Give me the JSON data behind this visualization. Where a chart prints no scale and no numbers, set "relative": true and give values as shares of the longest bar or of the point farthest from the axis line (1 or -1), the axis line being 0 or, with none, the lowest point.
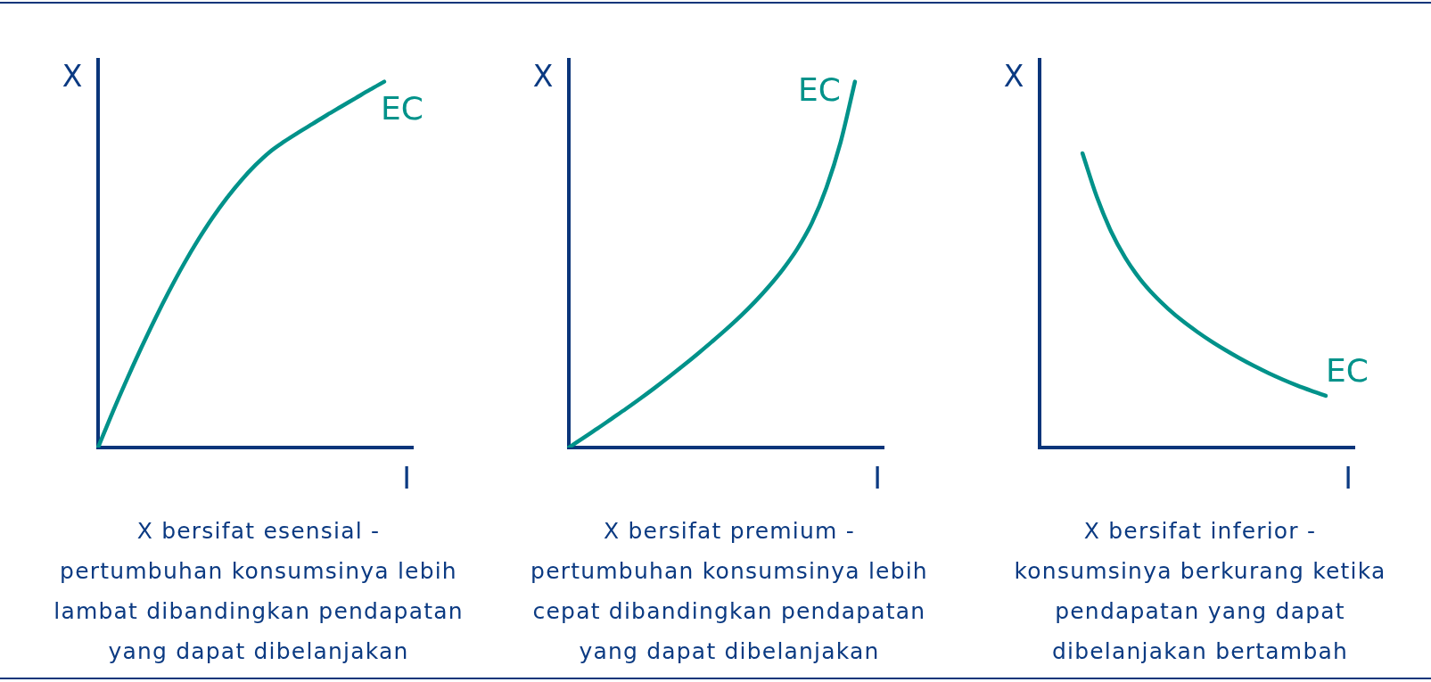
{
  "chart_data": [
    {
      "type": "line",
      "relative": true,
      "xlabel": "I",
      "ylabel": "X",
      "categories": [
        null,
        null,
        null,
        null,
        null,
        null,
        null,
        null,
        null,
        null,
        null,
        null,
        null,
        null,
        null,
        null,
        null,
        null,
        null,
        null,
        null,
        null,
        null
      ],
      "series": [
        {
          "name": "EC",
          "color": "#00928a",
          "values": [
            0,
            0.095,
            0.185,
            0.271,
            0.353,
            0.43,
            0.502,
            0.568,
            0.628,
            0.682,
            0.73,
            0.772,
            0.808,
            0.836,
            0.861,
            0.885,
            0.909,
            0.932,
            0.955,
            0.978,
            1,
            null,
            null
          ]
        }
      ],
      "annotations": [
        "X bersifat esensial -\npertumbuhan konsumsinya lebih lambat dibandingkan pendapatan yang dapat dibelanjakan"
      ]
    },
    {
      "type": "line",
      "relative": true,
      "xlabel": "I",
      "ylabel": "X",
      "categories": [
        null,
        null,
        null,
        null,
        null,
        null,
        null,
        null,
        null,
        null,
        null,
        null,
        null,
        null,
        null,
        null,
        null,
        null,
        null,
        null,
        null,
        null,
        null
      ],
      "series": [
        {
          "name": "EC",
          "color": "#00928a",
          "values": [
            0,
            0.026,
            0.052,
            0.079,
            0.106,
            0.134,
            0.163,
            0.193,
            0.224,
            0.256,
            0.289,
            0.323,
            0.359,
            0.398,
            0.441,
            0.489,
            0.545,
            0.615,
            0.71,
            0.835,
            1,
            null,
            null
          ]
        }
      ],
      "annotations": [
        "X bersifat premium -\npertumbuhan konsumsinya lebih cepat dibandingkan pendapatan yang dapat dibelanjakan"
      ]
    },
    {
      "type": "line",
      "relative": true,
      "xlabel": "I",
      "ylabel": "X",
      "categories": [
        null,
        null,
        null,
        null,
        null,
        null,
        null,
        null,
        null,
        null,
        null,
        null,
        null,
        null,
        null,
        null,
        null,
        null,
        null,
        null,
        null,
        null,
        null
      ],
      "series": [
        {
          "name": "EC",
          "color": "#00928a",
          "values": [
            null,
            null,
            null,
            1,
            0.852,
            0.734,
            0.644,
            0.574,
            0.518,
            0.471,
            0.43,
            0.394,
            0.361,
            0.331,
            0.303,
            0.277,
            0.253,
            0.231,
            0.211,
            0.193,
            0.176,
            null,
            null
          ]
        }
      ],
      "annotations": [
        "X bersifat inferior -\nkonsumsinya berkurang ketika pendapatan yang dapat dibelanjakan bertambah"
      ]
    }
  ]
}
